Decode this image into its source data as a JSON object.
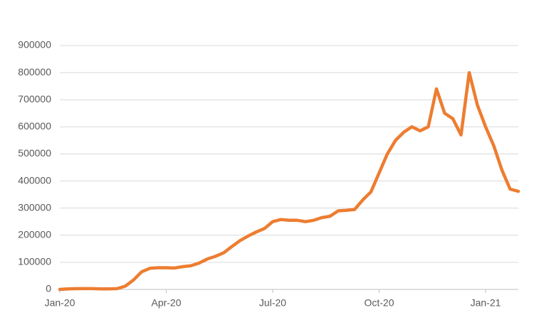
{
  "chart_data": {
    "type": "line",
    "categories": [
      "Jan-20",
      null,
      null,
      null,
      null,
      null,
      null,
      null,
      null,
      null,
      null,
      null,
      null,
      "Apr-20",
      null,
      null,
      null,
      null,
      null,
      null,
      null,
      null,
      null,
      null,
      null,
      null,
      "Jul-20",
      null,
      null,
      null,
      null,
      null,
      null,
      null,
      null,
      null,
      null,
      null,
      null,
      "Oct-20",
      null,
      null,
      null,
      null,
      null,
      null,
      null,
      null,
      null,
      null,
      null,
      null,
      "Jan-21",
      null,
      null,
      null,
      null
    ],
    "series": [
      {
        "color": "#ed7d31",
        "values": [
          0,
          2000,
          3000,
          3000,
          3000,
          2000,
          2000,
          3000,
          12000,
          35000,
          65000,
          78000,
          80000,
          80000,
          79000,
          84000,
          87000,
          97000,
          112000,
          122000,
          135000,
          158000,
          180000,
          197000,
          212000,
          225000,
          250000,
          258000,
          255000,
          255000,
          250000,
          255000,
          265000,
          270000,
          290000,
          292000,
          295000,
          330000,
          360000,
          430000,
          500000,
          550000,
          580000,
          600000,
          585000,
          600000,
          740000,
          650000,
          630000,
          570000,
          800000,
          680000,
          600000,
          530000,
          440000,
          370000,
          362000
        ]
      }
    ],
    "ylim": [
      0,
      900000
    ],
    "yticks": [
      0,
      100000,
      200000,
      300000,
      400000,
      500000,
      600000,
      700000,
      800000,
      900000
    ],
    "grid": true
  }
}
